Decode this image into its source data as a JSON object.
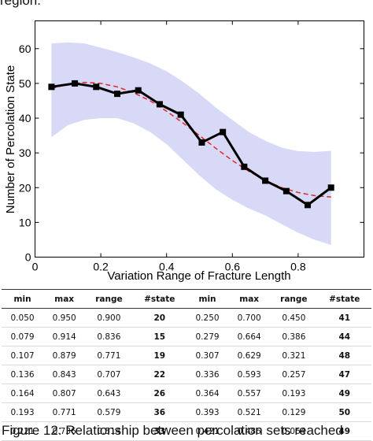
{
  "text": {
    "top_fragment": "region.",
    "caption_fragment": "Figure 12: Relationship between percolation sets reached"
  },
  "chart_data": {
    "type": "line",
    "xlabel": "Variation Range of Fracture Length",
    "ylabel": "Number of Percolation State",
    "xlim": [
      0,
      1.0
    ],
    "ylim": [
      0,
      68
    ],
    "x_ticks": [
      "0",
      "0.2",
      "0.4",
      "0.6",
      "0.8"
    ],
    "y_ticks": [
      "0",
      "10",
      "20",
      "30",
      "40",
      "50",
      "60"
    ],
    "grid": false,
    "series": [
      {
        "kind": "line-markers",
        "color": "#000000",
        "x": [
          0.05,
          0.121,
          0.186,
          0.25,
          0.314,
          0.379,
          0.443,
          0.507,
          0.571,
          0.636,
          0.7,
          0.764,
          0.829,
          0.9
        ],
        "y": [
          49,
          50,
          49,
          47,
          48,
          44,
          41,
          33,
          36,
          26,
          22,
          19,
          15,
          20
        ]
      },
      {
        "kind": "dashed-fit",
        "color": "#e0282a",
        "x": [
          0.05,
          0.1,
          0.15,
          0.2,
          0.25,
          0.3,
          0.35,
          0.4,
          0.45,
          0.5,
          0.55,
          0.6,
          0.65,
          0.7,
          0.75,
          0.8,
          0.85,
          0.9
        ],
        "y": [
          48.5,
          49.8,
          50.3,
          50.0,
          49.0,
          47.3,
          45.0,
          42.0,
          38.6,
          35.0,
          31.3,
          27.8,
          24.7,
          22.1,
          20.0,
          18.6,
          17.7,
          17.3
        ]
      },
      {
        "kind": "band",
        "color": "#d8d9f6",
        "x": [
          0.05,
          0.1,
          0.15,
          0.2,
          0.25,
          0.3,
          0.35,
          0.4,
          0.45,
          0.5,
          0.55,
          0.6,
          0.65,
          0.7,
          0.75,
          0.8,
          0.85,
          0.9
        ],
        "upper": [
          61.5,
          61.8,
          61.5,
          60.3,
          59.0,
          57.5,
          55.8,
          53.5,
          50.5,
          47.0,
          43.0,
          39.5,
          36.0,
          33.5,
          31.5,
          30.5,
          30.3,
          30.6
        ],
        "lower": [
          34.5,
          38.0,
          39.5,
          40.0,
          40.0,
          38.5,
          36.0,
          32.5,
          28.0,
          23.5,
          19.5,
          16.5,
          14.0,
          12.0,
          9.5,
          7.0,
          5.0,
          3.5
        ]
      }
    ]
  },
  "table": {
    "headers": [
      "min",
      "max",
      "range",
      "#state",
      "min",
      "max",
      "range",
      "#state"
    ],
    "rows": [
      [
        "0.050",
        "0.950",
        "0.900",
        "20",
        "0.250",
        "0.700",
        "0.450",
        "41"
      ],
      [
        "0.079",
        "0.914",
        "0.836",
        "15",
        "0.279",
        "0.664",
        "0.386",
        "44"
      ],
      [
        "0.107",
        "0.879",
        "0.771",
        "19",
        "0.307",
        "0.629",
        "0.321",
        "48"
      ],
      [
        "0.136",
        "0.843",
        "0.707",
        "22",
        "0.336",
        "0.593",
        "0.257",
        "47"
      ],
      [
        "0.164",
        "0.807",
        "0.643",
        "26",
        "0.364",
        "0.557",
        "0.193",
        "49"
      ],
      [
        "0.193",
        "0.771",
        "0.579",
        "36",
        "0.393",
        "0.521",
        "0.129",
        "50"
      ],
      [
        "0.221",
        "0.736",
        "0.514",
        "33",
        "0.421",
        "0.486",
        "0.064",
        "49"
      ]
    ]
  }
}
